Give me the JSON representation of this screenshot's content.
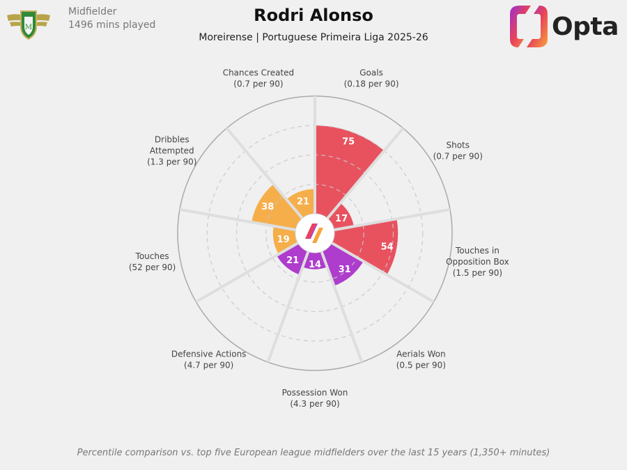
{
  "player": {
    "name": "Rodri Alonso",
    "position": "Midfielder",
    "minutes": "1496 mins played",
    "team_league": "Moreirense | Portuguese Primeira Liga 2025-26"
  },
  "brand": {
    "name": "Opta"
  },
  "footer": "Percentile comparison vs. top five European league midfielders over the last 15 years (1,350+ minutes)",
  "colors": {
    "attacking": "#e8525f",
    "creative": "#f5ae4a",
    "defensive": "#ae3ccc",
    "background": "#f0f0f0"
  },
  "chart_data": {
    "type": "polar-bar",
    "scale": [
      0,
      100
    ],
    "series": [
      {
        "metric": "Goals",
        "per90": "(0.18 per 90)",
        "value": 75,
        "group": "attacking"
      },
      {
        "metric": "Shots",
        "per90": "(0.7 per 90)",
        "value": 17,
        "group": "attacking"
      },
      {
        "metric": "Touches in Opposition Box",
        "per90": "(1.5 per 90)",
        "value": 54,
        "group": "attacking"
      },
      {
        "metric": "Aerials Won",
        "per90": "(0.5 per 90)",
        "value": 31,
        "group": "defensive"
      },
      {
        "metric": "Possession Won",
        "per90": "(4.3 per 90)",
        "value": 14,
        "group": "defensive"
      },
      {
        "metric": "Defensive Actions",
        "per90": "(4.7 per 90)",
        "value": 21,
        "group": "defensive"
      },
      {
        "metric": "Touches",
        "per90": "(52 per 90)",
        "value": 19,
        "group": "creative"
      },
      {
        "metric": "Dribbles Attempted",
        "per90": "(1.3 per 90)",
        "value": 38,
        "group": "creative"
      },
      {
        "metric": "Chances Created",
        "per90": "(0.7 per 90)",
        "value": 21,
        "group": "creative"
      }
    ]
  }
}
